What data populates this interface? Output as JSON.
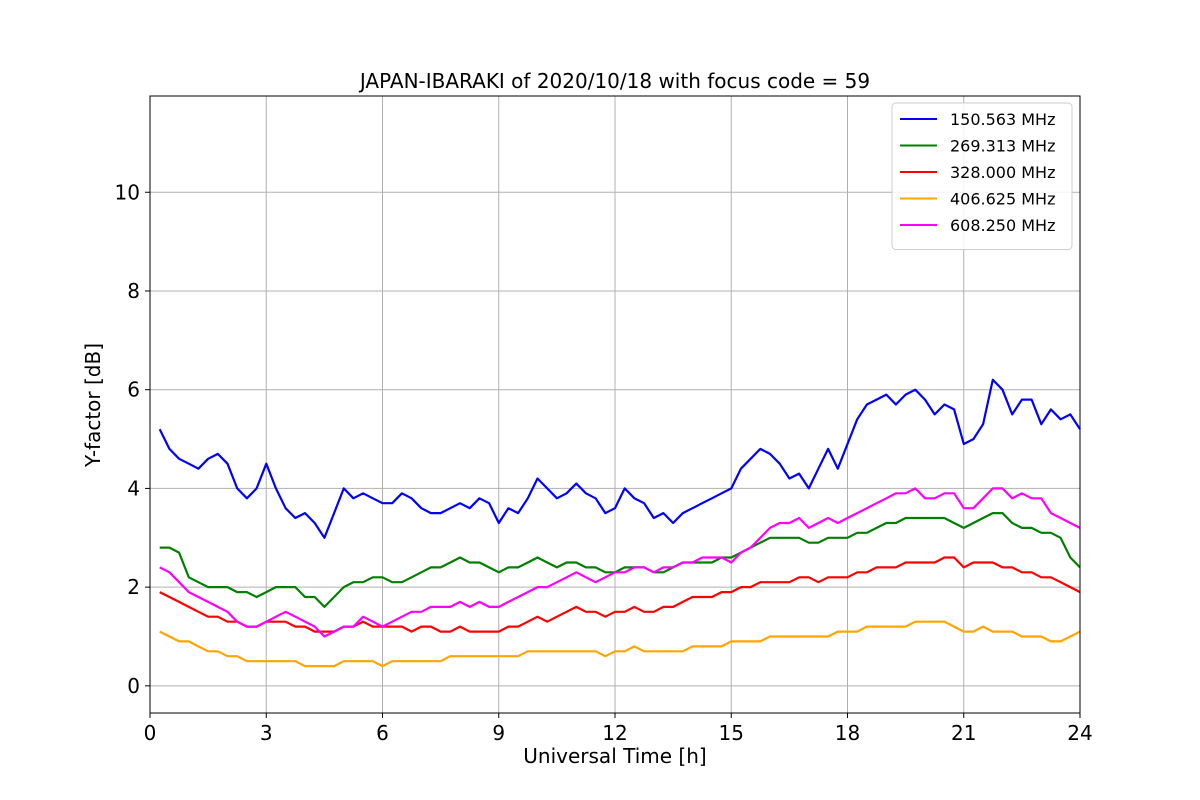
{
  "chart_data": {
    "type": "line",
    "title": "JAPAN-IBARAKI of 2020/10/18 with focus code = 59",
    "xlabel": "Universal Time [h]",
    "ylabel": "Y-factor [dB]",
    "xlim": [
      0,
      24
    ],
    "ylim": [
      -0.55,
      11.95
    ],
    "xticks": [
      0,
      3,
      6,
      9,
      12,
      15,
      18,
      21,
      24
    ],
    "yticks": [
      0,
      2,
      4,
      6,
      8,
      10
    ],
    "grid": true,
    "legend_position": "top-right",
    "series": [
      {
        "name": "150.563 MHz",
        "color": "#0000ff",
        "x": [
          0.25,
          0.5,
          0.75,
          1,
          1.25,
          1.5,
          1.75,
          2,
          2.25,
          2.5,
          2.75,
          3,
          3.25,
          3.5,
          3.75,
          4,
          4.25,
          4.5,
          4.75,
          5,
          5.25,
          5.5,
          5.75,
          6,
          6.25,
          6.5,
          6.75,
          7,
          7.25,
          7.5,
          7.75,
          8,
          8.25,
          8.5,
          8.75,
          9,
          9.25,
          9.5,
          9.75,
          10,
          10.25,
          10.5,
          10.75,
          11,
          11.25,
          11.5,
          11.75,
          12,
          12.25,
          12.5,
          12.75,
          13,
          13.25,
          13.5,
          13.75,
          14,
          14.25,
          14.5,
          14.75,
          15,
          15.25,
          15.5,
          15.75,
          16,
          16.25,
          16.5,
          16.75,
          17,
          17.25,
          17.5,
          17.75,
          18,
          18.25,
          18.5,
          18.75,
          19,
          19.25,
          19.5,
          19.75,
          20,
          20.25,
          20.5,
          20.75,
          21,
          21.25,
          21.5,
          21.75,
          22,
          22.25,
          22.5,
          22.75,
          23,
          23.25,
          23.5,
          23.75,
          24
        ],
        "y": [
          5.2,
          4.8,
          4.6,
          4.5,
          4.4,
          4.6,
          4.7,
          4.5,
          4.0,
          3.8,
          4.0,
          4.5,
          4.0,
          3.6,
          3.4,
          3.5,
          3.3,
          3.0,
          3.5,
          4.0,
          3.8,
          3.9,
          3.8,
          3.7,
          3.7,
          3.9,
          3.8,
          3.6,
          3.5,
          3.5,
          3.6,
          3.7,
          3.6,
          3.8,
          3.7,
          3.3,
          3.6,
          3.5,
          3.8,
          4.2,
          4.0,
          3.8,
          3.9,
          4.1,
          3.9,
          3.8,
          3.5,
          3.6,
          4.0,
          3.8,
          3.7,
          3.4,
          3.5,
          3.3,
          3.5,
          3.6,
          3.7,
          3.8,
          3.9,
          4.0,
          4.4,
          4.6,
          4.8,
          4.7,
          4.5,
          4.2,
          4.3,
          4.0,
          4.4,
          4.8,
          4.4,
          4.9,
          5.4,
          5.7,
          5.8,
          5.9,
          5.7,
          5.9,
          6.0,
          5.8,
          5.5,
          5.7,
          5.6,
          4.9,
          5.0,
          5.3,
          6.2,
          6.0,
          5.5,
          5.8,
          5.8,
          5.3,
          5.6,
          5.4,
          5.5,
          5.2
        ]
      },
      {
        "name": "269.313 MHz",
        "color": "#008000",
        "x": [
          0.25,
          0.5,
          0.75,
          1,
          1.25,
          1.5,
          1.75,
          2,
          2.25,
          2.5,
          2.75,
          3,
          3.25,
          3.5,
          3.75,
          4,
          4.25,
          4.5,
          4.75,
          5,
          5.25,
          5.5,
          5.75,
          6,
          6.25,
          6.5,
          6.75,
          7,
          7.25,
          7.5,
          7.75,
          8,
          8.25,
          8.5,
          8.75,
          9,
          9.25,
          9.5,
          9.75,
          10,
          10.25,
          10.5,
          10.75,
          11,
          11.25,
          11.5,
          11.75,
          12,
          12.25,
          12.5,
          12.75,
          13,
          13.25,
          13.5,
          13.75,
          14,
          14.25,
          14.5,
          14.75,
          15,
          15.25,
          15.5,
          15.75,
          16,
          16.25,
          16.5,
          16.75,
          17,
          17.25,
          17.5,
          17.75,
          18,
          18.25,
          18.5,
          18.75,
          19,
          19.25,
          19.5,
          19.75,
          20,
          20.25,
          20.5,
          20.75,
          21,
          21.25,
          21.5,
          21.75,
          22,
          22.25,
          22.5,
          22.75,
          23,
          23.25,
          23.5,
          23.75,
          24
        ],
        "y": [
          2.8,
          2.8,
          2.7,
          2.2,
          2.1,
          2.0,
          2.0,
          2.0,
          1.9,
          1.9,
          1.8,
          1.9,
          2.0,
          2.0,
          2.0,
          1.8,
          1.8,
          1.6,
          1.8,
          2.0,
          2.1,
          2.1,
          2.2,
          2.2,
          2.1,
          2.1,
          2.2,
          2.3,
          2.4,
          2.4,
          2.5,
          2.6,
          2.5,
          2.5,
          2.4,
          2.3,
          2.4,
          2.4,
          2.5,
          2.6,
          2.5,
          2.4,
          2.5,
          2.5,
          2.4,
          2.4,
          2.3,
          2.3,
          2.4,
          2.4,
          2.4,
          2.3,
          2.3,
          2.4,
          2.5,
          2.5,
          2.5,
          2.5,
          2.6,
          2.6,
          2.7,
          2.8,
          2.9,
          3.0,
          3.0,
          3.0,
          3.0,
          2.9,
          2.9,
          3.0,
          3.0,
          3.0,
          3.1,
          3.1,
          3.2,
          3.3,
          3.3,
          3.4,
          3.4,
          3.4,
          3.4,
          3.4,
          3.3,
          3.2,
          3.3,
          3.4,
          3.5,
          3.5,
          3.3,
          3.2,
          3.2,
          3.1,
          3.1,
          3.0,
          2.6,
          2.4
        ]
      },
      {
        "name": "328.000 MHz",
        "color": "#ff0000",
        "x": [
          0.25,
          0.5,
          0.75,
          1,
          1.25,
          1.5,
          1.75,
          2,
          2.25,
          2.5,
          2.75,
          3,
          3.25,
          3.5,
          3.75,
          4,
          4.25,
          4.5,
          4.75,
          5,
          5.25,
          5.5,
          5.75,
          6,
          6.25,
          6.5,
          6.75,
          7,
          7.25,
          7.5,
          7.75,
          8,
          8.25,
          8.5,
          8.75,
          9,
          9.25,
          9.5,
          9.75,
          10,
          10.25,
          10.5,
          10.75,
          11,
          11.25,
          11.5,
          11.75,
          12,
          12.25,
          12.5,
          12.75,
          13,
          13.25,
          13.5,
          13.75,
          14,
          14.25,
          14.5,
          14.75,
          15,
          15.25,
          15.5,
          15.75,
          16,
          16.25,
          16.5,
          16.75,
          17,
          17.25,
          17.5,
          17.75,
          18,
          18.25,
          18.5,
          18.75,
          19,
          19.25,
          19.5,
          19.75,
          20,
          20.25,
          20.5,
          20.75,
          21,
          21.25,
          21.5,
          21.75,
          22,
          22.25,
          22.5,
          22.75,
          23,
          23.25,
          23.5,
          23.75,
          24
        ],
        "y": [
          1.9,
          1.8,
          1.7,
          1.6,
          1.5,
          1.4,
          1.4,
          1.3,
          1.3,
          1.2,
          1.2,
          1.3,
          1.3,
          1.3,
          1.2,
          1.2,
          1.1,
          1.1,
          1.1,
          1.2,
          1.2,
          1.3,
          1.2,
          1.2,
          1.2,
          1.2,
          1.1,
          1.2,
          1.2,
          1.1,
          1.1,
          1.2,
          1.1,
          1.1,
          1.1,
          1.1,
          1.2,
          1.2,
          1.3,
          1.4,
          1.3,
          1.4,
          1.5,
          1.6,
          1.5,
          1.5,
          1.4,
          1.5,
          1.5,
          1.6,
          1.5,
          1.5,
          1.6,
          1.6,
          1.7,
          1.8,
          1.8,
          1.8,
          1.9,
          1.9,
          2.0,
          2.0,
          2.1,
          2.1,
          2.1,
          2.1,
          2.2,
          2.2,
          2.1,
          2.2,
          2.2,
          2.2,
          2.3,
          2.3,
          2.4,
          2.4,
          2.4,
          2.5,
          2.5,
          2.5,
          2.5,
          2.6,
          2.6,
          2.4,
          2.5,
          2.5,
          2.5,
          2.4,
          2.4,
          2.3,
          2.3,
          2.2,
          2.2,
          2.1,
          2.0,
          1.9
        ]
      },
      {
        "name": "406.625 MHz",
        "color": "#ffa500",
        "x": [
          0.25,
          0.5,
          0.75,
          1,
          1.25,
          1.5,
          1.75,
          2,
          2.25,
          2.5,
          2.75,
          3,
          3.25,
          3.5,
          3.75,
          4,
          4.25,
          4.5,
          4.75,
          5,
          5.25,
          5.5,
          5.75,
          6,
          6.25,
          6.5,
          6.75,
          7,
          7.25,
          7.5,
          7.75,
          8,
          8.25,
          8.5,
          8.75,
          9,
          9.25,
          9.5,
          9.75,
          10,
          10.25,
          10.5,
          10.75,
          11,
          11.25,
          11.5,
          11.75,
          12,
          12.25,
          12.5,
          12.75,
          13,
          13.25,
          13.5,
          13.75,
          14,
          14.25,
          14.5,
          14.75,
          15,
          15.25,
          15.5,
          15.75,
          16,
          16.25,
          16.5,
          16.75,
          17,
          17.25,
          17.5,
          17.75,
          18,
          18.25,
          18.5,
          18.75,
          19,
          19.25,
          19.5,
          19.75,
          20,
          20.25,
          20.5,
          20.75,
          21,
          21.25,
          21.5,
          21.75,
          22,
          22.25,
          22.5,
          22.75,
          23,
          23.25,
          23.5,
          23.75,
          24
        ],
        "y": [
          1.1,
          1.0,
          0.9,
          0.9,
          0.8,
          0.7,
          0.7,
          0.6,
          0.6,
          0.5,
          0.5,
          0.5,
          0.5,
          0.5,
          0.5,
          0.4,
          0.4,
          0.4,
          0.4,
          0.5,
          0.5,
          0.5,
          0.5,
          0.4,
          0.5,
          0.5,
          0.5,
          0.5,
          0.5,
          0.5,
          0.6,
          0.6,
          0.6,
          0.6,
          0.6,
          0.6,
          0.6,
          0.6,
          0.7,
          0.7,
          0.7,
          0.7,
          0.7,
          0.7,
          0.7,
          0.7,
          0.6,
          0.7,
          0.7,
          0.8,
          0.7,
          0.7,
          0.7,
          0.7,
          0.7,
          0.8,
          0.8,
          0.8,
          0.8,
          0.9,
          0.9,
          0.9,
          0.9,
          1.0,
          1.0,
          1.0,
          1.0,
          1.0,
          1.0,
          1.0,
          1.1,
          1.1,
          1.1,
          1.2,
          1.2,
          1.2,
          1.2,
          1.2,
          1.3,
          1.3,
          1.3,
          1.3,
          1.2,
          1.1,
          1.1,
          1.2,
          1.1,
          1.1,
          1.1,
          1.0,
          1.0,
          1.0,
          0.9,
          0.9,
          1.0,
          1.1
        ]
      },
      {
        "name": "608.250 MHz",
        "color": "#ff00ff",
        "x": [
          0.25,
          0.5,
          0.75,
          1,
          1.25,
          1.5,
          1.75,
          2,
          2.25,
          2.5,
          2.75,
          3,
          3.25,
          3.5,
          3.75,
          4,
          4.25,
          4.5,
          4.75,
          5,
          5.25,
          5.5,
          5.75,
          6,
          6.25,
          6.5,
          6.75,
          7,
          7.25,
          7.5,
          7.75,
          8,
          8.25,
          8.5,
          8.75,
          9,
          9.25,
          9.5,
          9.75,
          10,
          10.25,
          10.5,
          10.75,
          11,
          11.25,
          11.5,
          11.75,
          12,
          12.25,
          12.5,
          12.75,
          13,
          13.25,
          13.5,
          13.75,
          14,
          14.25,
          14.5,
          14.75,
          15,
          15.25,
          15.5,
          15.75,
          16,
          16.25,
          16.5,
          16.75,
          17,
          17.25,
          17.5,
          17.75,
          18,
          18.25,
          18.5,
          18.75,
          19,
          19.25,
          19.5,
          19.75,
          20,
          20.25,
          20.5,
          20.75,
          21,
          21.25,
          21.5,
          21.75,
          22,
          22.25,
          22.5,
          22.75,
          23,
          23.25,
          23.5,
          23.75,
          24
        ],
        "y": [
          2.4,
          2.3,
          2.1,
          1.9,
          1.8,
          1.7,
          1.6,
          1.5,
          1.3,
          1.2,
          1.2,
          1.3,
          1.4,
          1.5,
          1.4,
          1.3,
          1.2,
          1.0,
          1.1,
          1.2,
          1.2,
          1.4,
          1.3,
          1.2,
          1.3,
          1.4,
          1.5,
          1.5,
          1.6,
          1.6,
          1.6,
          1.7,
          1.6,
          1.7,
          1.6,
          1.6,
          1.7,
          1.8,
          1.9,
          2.0,
          2.0,
          2.1,
          2.2,
          2.3,
          2.2,
          2.1,
          2.2,
          2.3,
          2.3,
          2.4,
          2.4,
          2.3,
          2.4,
          2.4,
          2.5,
          2.5,
          2.6,
          2.6,
          2.6,
          2.5,
          2.7,
          2.8,
          3.0,
          3.2,
          3.3,
          3.3,
          3.4,
          3.2,
          3.3,
          3.4,
          3.3,
          3.4,
          3.5,
          3.6,
          3.7,
          3.8,
          3.9,
          3.9,
          4.0,
          3.8,
          3.8,
          3.9,
          3.9,
          3.6,
          3.6,
          3.8,
          4.0,
          4.0,
          3.8,
          3.9,
          3.8,
          3.8,
          3.5,
          3.4,
          3.3,
          3.2
        ]
      }
    ]
  }
}
